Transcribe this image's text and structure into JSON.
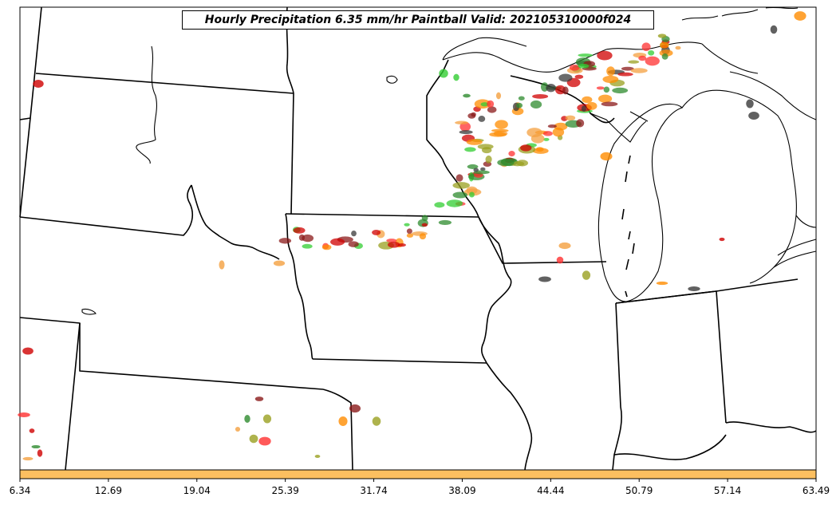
{
  "map": {
    "title": "Hourly Precipitation 6.35 mm/hr Paintball Valid: 202105310000f024",
    "colors": {
      "land_background": "#ffffff",
      "boundary_lines": "#000000",
      "colorbar_fill": "#fcbf60"
    },
    "paintball_colors": [
      "#ff8c00",
      "#d00000",
      "#8b1a1a",
      "#2e8b2e",
      "#32cd32",
      "#9aa020",
      "#3a3a3a",
      "#f4a040",
      "#ff3030"
    ],
    "colorbar": {
      "ticks": [
        "6.34",
        "12.69",
        "19.04",
        "25.39",
        "31.74",
        "38.09",
        "44.44",
        "50.79",
        "57.14",
        "63.49"
      ]
    }
  }
}
